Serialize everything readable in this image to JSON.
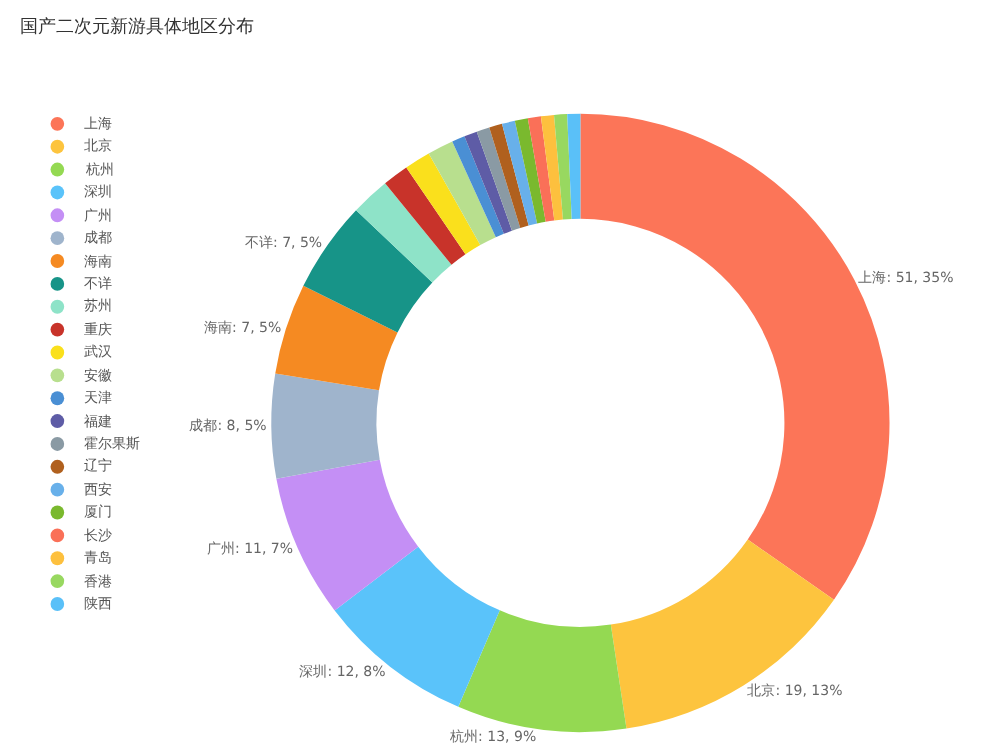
{
  "chart_data": {
    "type": "donut",
    "title": "国产二次元新游具体地区分布",
    "categories": [
      "上海",
      "北京",
      "杭州",
      "深圳",
      "广州",
      "成都",
      "海南",
      "不详",
      "苏州",
      "重庆",
      "武汉",
      "安徽",
      "天津",
      "福建",
      "霍尔果斯",
      "辽宁",
      "西安",
      "厦门",
      "长沙",
      "青岛",
      "香港",
      "陕西"
    ],
    "values": [
      51,
      19,
      13,
      12,
      11,
      8,
      7,
      7,
      3,
      2,
      2,
      2,
      1,
      1,
      1,
      1,
      1,
      1,
      1,
      1,
      1,
      1
    ],
    "value_labels": [
      "上海: 51, 35%",
      "北京: 19, 13%",
      "杭州: 13, 9%",
      "深圳: 12, 8%",
      "广州: 11, 7%",
      "成都: 8, 5%",
      "海南: 7, 5%",
      "不详: 7, 5%",
      null,
      null,
      null,
      null,
      null,
      null,
      null,
      null,
      null,
      null,
      null,
      null,
      null,
      null
    ],
    "colors": [
      "#fc7558",
      "#fdc43e",
      "#94d952",
      "#5ac3fa",
      "#c48ff5",
      "#9fb4cc",
      "#f58a22",
      "#179488",
      "#8ee3c8",
      "#c8332a",
      "#fae01c",
      "#b8df8e",
      "#4a8fd4",
      "#5e5ca6",
      "#8a9aa4",
      "#b0601e",
      "#68b0ea",
      "#7ab92e",
      "#fa7058",
      "#fdc03e",
      "#98d860",
      "#5ac0f8"
    ],
    "legend": "top left"
  }
}
